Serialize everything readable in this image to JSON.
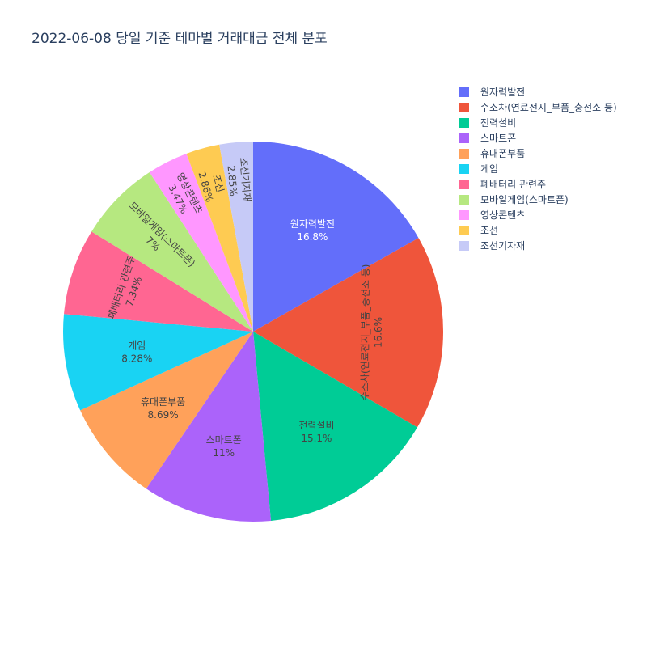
{
  "chart_data": {
    "type": "pie",
    "title": "2022-06-08 당일 기준 테마별 거래대금 전체 분포",
    "slices": [
      {
        "label": "원자력발전",
        "value": 16.8,
        "text": "16.8%",
        "color": "#636efa"
      },
      {
        "label": "수소차(연료전지_부품_충전소 등)",
        "value": 16.6,
        "text": "16.6%",
        "color": "#ef553b"
      },
      {
        "label": "전력설비",
        "value": 15.1,
        "text": "15.1%",
        "color": "#00cc96"
      },
      {
        "label": "스마트폰",
        "value": 11.0,
        "text": "11%",
        "color": "#ab63fa"
      },
      {
        "label": "휴대폰부품",
        "value": 8.69,
        "text": "8.69%",
        "color": "#ffa15a"
      },
      {
        "label": "게임",
        "value": 8.28,
        "text": "8.28%",
        "color": "#19d3f3"
      },
      {
        "label": "폐배터리 관련주",
        "value": 7.34,
        "text": "7.34%",
        "color": "#ff6692"
      },
      {
        "label": "모바일게임(스마트폰)",
        "value": 7.0,
        "text": "7%",
        "color": "#b6e880"
      },
      {
        "label": "영상콘텐츠",
        "value": 3.47,
        "text": "3.47%",
        "color": "#ff97ff"
      },
      {
        "label": "조선",
        "value": 2.86,
        "text": "2.86%",
        "color": "#fecb52"
      },
      {
        "label": "조선기자재",
        "value": 2.85,
        "text": "2.85%",
        "color": "#c6caf7"
      }
    ],
    "legend_position": "top-right",
    "direction": "clockwise",
    "start": "top"
  }
}
